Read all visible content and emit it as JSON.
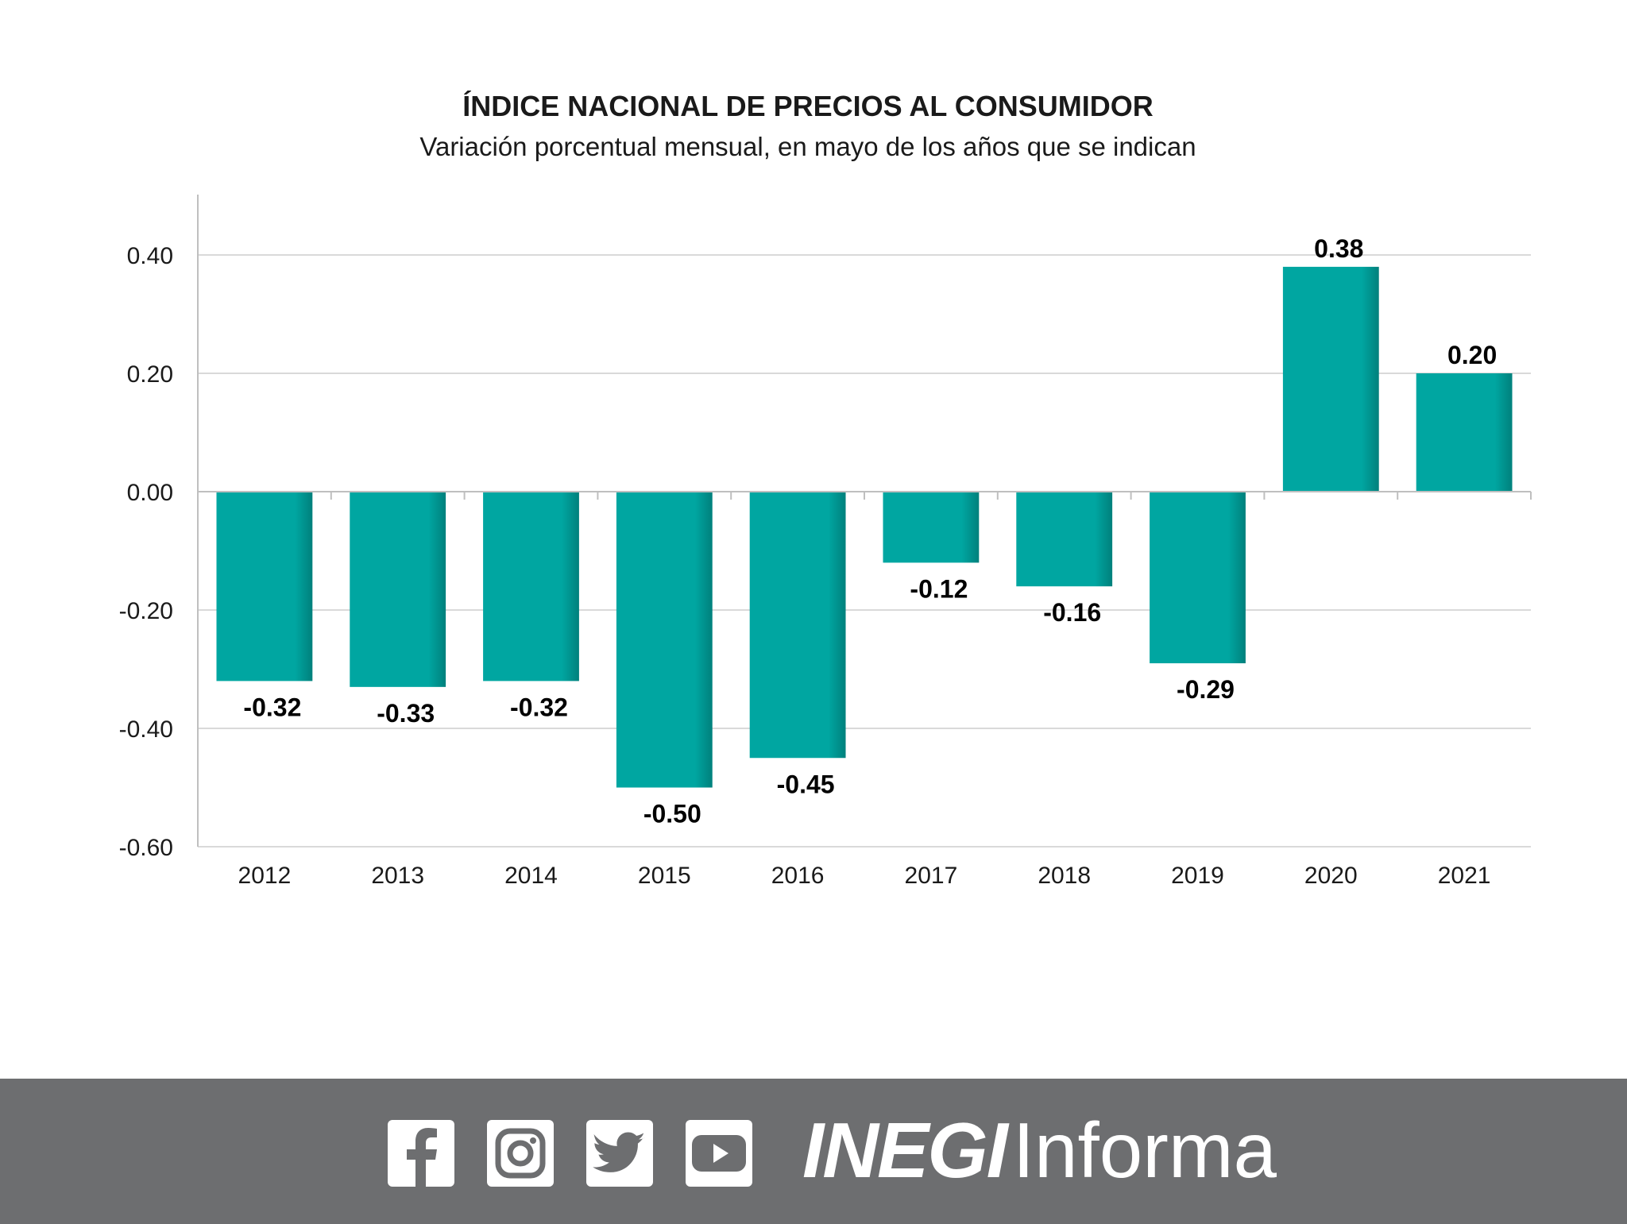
{
  "colors": {
    "bar": "#00a6a1",
    "bar_dark": "#00807c",
    "grid": "#d9d9d9",
    "axis": "#bfbfbf",
    "footer": "#6d6e70"
  },
  "chart_data": {
    "type": "bar",
    "title": "ÍNDICE NACIONAL DE PRECIOS AL CONSUMIDOR",
    "subtitle": "Variación porcentual mensual, en mayo de los años que se indican",
    "categories": [
      "2012",
      "2013",
      "2014",
      "2015",
      "2016",
      "2017",
      "2018",
      "2019",
      "2020",
      "2021"
    ],
    "values": [
      -0.32,
      -0.33,
      -0.32,
      -0.5,
      -0.45,
      -0.12,
      -0.16,
      -0.29,
      0.38,
      0.2
    ],
    "value_labels": [
      "-0.32",
      "-0.33",
      "-0.32",
      "-0.50",
      "-0.45",
      "-0.12",
      "-0.16",
      "-0.29",
      "0.38",
      "0.20"
    ],
    "ylim": [
      -0.6,
      0.5
    ],
    "yticks": [
      0.4,
      0.2,
      0.0,
      -0.2,
      -0.4,
      -0.6
    ],
    "ytick_labels": [
      "0.40",
      "0.20",
      "0.00",
      "-0.20",
      "-0.40",
      "-0.60"
    ],
    "xlabel": "",
    "ylabel": "",
    "grid": true,
    "legend": "none"
  },
  "footer": {
    "icons": [
      "facebook-icon",
      "instagram-icon",
      "twitter-icon",
      "youtube-icon"
    ],
    "brand_bold": "INEGI",
    "brand_light": "Informa"
  }
}
